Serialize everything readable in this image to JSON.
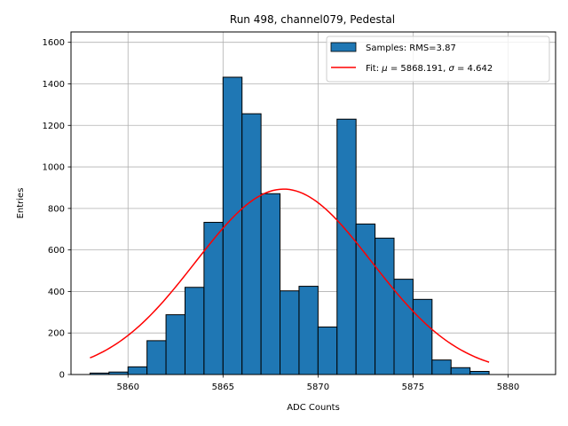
{
  "chart_data": {
    "type": "histogram",
    "title": "Run 498, channel079, Pedestal",
    "xlabel": "ADC Counts",
    "ylabel": "Entries",
    "xlim": [
      5857,
      5882.5
    ],
    "ylim": [
      0,
      1650
    ],
    "grid": true,
    "xticks": [
      5860,
      5865,
      5870,
      5875,
      5880
    ],
    "yticks": [
      0,
      200,
      400,
      600,
      800,
      1000,
      1200,
      1400,
      1600
    ],
    "bin_edges": [
      5858,
      5859,
      5860,
      5861,
      5862,
      5863,
      5864,
      5865,
      5866,
      5867,
      5868,
      5869,
      5870,
      5871,
      5872,
      5873,
      5874,
      5875,
      5876,
      5877,
      5878,
      5879
    ],
    "values": [
      7,
      12,
      37,
      163,
      288,
      420,
      733,
      1432,
      1256,
      871,
      403,
      425,
      229,
      1230,
      725,
      657,
      459,
      362,
      70,
      33,
      15
    ],
    "bar_color": "#1f77b4",
    "fit": {
      "type": "gaussian",
      "mu": 5868.191,
      "sigma": 4.642,
      "amplitude": 893,
      "x_range": [
        5858,
        5879
      ],
      "color": "#ff0000"
    },
    "legend": {
      "position": "top-right",
      "samples_label": "Samples: RMS=3.87",
      "fit_label_prefix": "Fit: ",
      "fit_mu_symbol": "μ",
      "fit_mu_text": " = 5868.191, ",
      "fit_sigma_symbol": "σ",
      "fit_sigma_text": " = 4.642"
    }
  }
}
